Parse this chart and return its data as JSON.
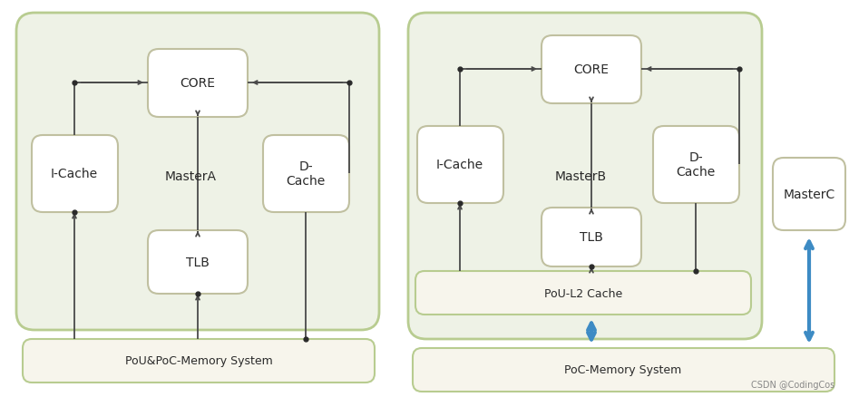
{
  "bg_color": "#ffffff",
  "outer_fill": "#eef2e6",
  "outer_edge": "#b8cc90",
  "mem_fill": "#f7f5ec",
  "mem_edge": "#b8cc90",
  "box_fill": "#ffffff",
  "box_edge": "#c0c0a0",
  "text_color": "#2a2a2a",
  "line_color": "#4a4a4a",
  "blue_color": "#3d8bc4",
  "watermark": "CSDN @CodingCos",
  "d1": {
    "memory_label": "PoU&PoC-Memory System",
    "core_label": "CORE",
    "icache_label": "I-Cache",
    "dcache_label": "D-\nCache",
    "masterA_label": "MasterA",
    "tlb_label": "TLB"
  },
  "d2": {
    "memory_label": "PoC-Memory System",
    "pou_label": "PoU-L2 Cache",
    "core_label": "CORE",
    "icache_label": "I-Cache",
    "dcache_label": "D-\nCache",
    "masterB_label": "MasterB",
    "tlb_label": "TLB",
    "masterC_label": "MasterC"
  }
}
